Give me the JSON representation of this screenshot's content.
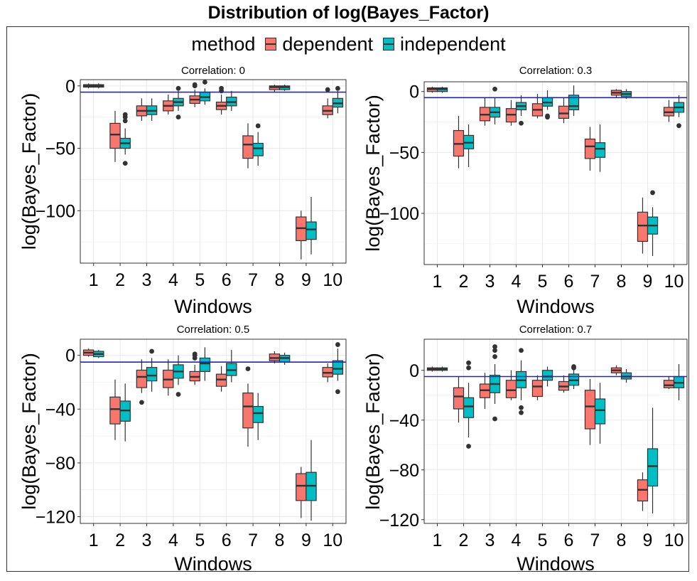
{
  "title": "Distribution of log(Bayes_Factor)",
  "legend": {
    "title": "method",
    "entries": [
      {
        "name": "dependent",
        "color": "#F8766D"
      },
      {
        "name": "independent",
        "color": "#00BFC4"
      }
    ]
  },
  "colors": {
    "reference_line": "#2222CC",
    "outline": "#333333",
    "grid": "#EBEBEB"
  },
  "chart_data": [
    {
      "type": "boxplot",
      "title": "Correlation: 0",
      "xlabel": "Windows",
      "ylabel": "log(Bayes_Factor)",
      "categories": [
        "1",
        "2",
        "3",
        "4",
        "5",
        "6",
        "7",
        "8",
        "9",
        "10"
      ],
      "ylim": [
        -142,
        5
      ],
      "yticks": [
        0,
        -50,
        -100
      ],
      "yticklabels": [
        "0",
        "−50",
        "−100"
      ],
      "hline": -5,
      "series": [
        {
          "name": "dependent",
          "boxes": [
            {
              "low": -2,
              "q1": -1,
              "median": 0,
              "q3": 1,
              "high": 2,
              "outliers": []
            },
            {
              "low": -61,
              "q1": -50,
              "median": -39,
              "q3": -30,
              "high": -20,
              "outliers": []
            },
            {
              "low": -28,
              "q1": -24,
              "median": -20,
              "q3": -16,
              "high": -10,
              "outliers": []
            },
            {
              "low": -23,
              "q1": -20,
              "median": -16,
              "q3": -12,
              "high": -7,
              "outliers": []
            },
            {
              "low": -17,
              "q1": -14,
              "median": -11,
              "q3": -8,
              "high": -3,
              "outliers": [
                0,
                1
              ]
            },
            {
              "low": -23,
              "q1": -19,
              "median": -16,
              "q3": -13,
              "high": -7,
              "outliers": [
                -2,
                -4
              ]
            },
            {
              "low": -66,
              "q1": -58,
              "median": -47,
              "q3": -40,
              "high": -30,
              "outliers": []
            },
            {
              "low": -5,
              "q1": -3,
              "median": -1,
              "q3": 0,
              "high": 1,
              "outliers": []
            },
            {
              "low": -139,
              "q1": -124,
              "median": -114,
              "q3": -105,
              "high": -100,
              "outliers": []
            },
            {
              "low": -26,
              "q1": -23,
              "median": -20,
              "q3": -16,
              "high": -10,
              "outliers": [
                -3
              ]
            }
          ]
        },
        {
          "name": "independent",
          "boxes": [
            {
              "low": -2,
              "q1": -1,
              "median": 0,
              "q3": 1,
              "high": 2,
              "outliers": []
            },
            {
              "low": -55,
              "q1": -50,
              "median": -46,
              "q3": -42,
              "high": -34,
              "outliers": [
                -62,
                -23,
                -25,
                -28
              ]
            },
            {
              "low": -28,
              "q1": -23,
              "median": -20,
              "q3": -16,
              "high": -10,
              "outliers": []
            },
            {
              "low": -20,
              "q1": -16,
              "median": -13,
              "q3": -10,
              "high": -4,
              "outliers": [
                -2,
                -25
              ]
            },
            {
              "low": -15,
              "q1": -12,
              "median": -9,
              "q3": -5,
              "high": -2,
              "outliers": [
                3
              ]
            },
            {
              "low": -20,
              "q1": -16,
              "median": -13,
              "q3": -9,
              "high": -4,
              "outliers": []
            },
            {
              "low": -64,
              "q1": -56,
              "median": -50,
              "q3": -46,
              "high": -37,
              "outliers": [
                -32
              ]
            },
            {
              "low": -4,
              "q1": -3,
              "median": -1,
              "q3": 0,
              "high": 1,
              "outliers": []
            },
            {
              "low": -135,
              "q1": -123,
              "median": -115,
              "q3": -109,
              "high": -89,
              "outliers": []
            },
            {
              "low": -22,
              "q1": -17,
              "median": -14,
              "q3": -10,
              "high": -4,
              "outliers": [
                -2
              ]
            }
          ]
        }
      ]
    },
    {
      "type": "boxplot",
      "title": "Correlation: 0.3",
      "xlabel": "Windows",
      "ylabel": "log(Bayes_Factor)",
      "categories": [
        "1",
        "2",
        "3",
        "4",
        "5",
        "6",
        "7",
        "8",
        "9",
        "10"
      ],
      "ylim": [
        -142,
        8
      ],
      "yticks": [
        0,
        -50,
        -100
      ],
      "yticklabels": [
        "0",
        "−50",
        "−100"
      ],
      "hline": -5,
      "series": [
        {
          "name": "dependent",
          "boxes": [
            {
              "low": -1,
              "q1": 0,
              "median": 2,
              "q3": 3,
              "high": 4,
              "outliers": []
            },
            {
              "low": -63,
              "q1": -53,
              "median": -43,
              "q3": -32,
              "high": -20,
              "outliers": []
            },
            {
              "low": -28,
              "q1": -24,
              "median": -19,
              "q3": -13,
              "high": -5,
              "outliers": []
            },
            {
              "low": -28,
              "q1": -25,
              "median": -19,
              "q3": -14,
              "high": -7,
              "outliers": []
            },
            {
              "low": -22,
              "q1": -20,
              "median": -15,
              "q3": -10,
              "high": -2,
              "outliers": []
            },
            {
              "low": -26,
              "q1": -22,
              "median": -18,
              "q3": -12,
              "high": -5,
              "outliers": []
            },
            {
              "low": -65,
              "q1": -55,
              "median": -45,
              "q3": -39,
              "high": -29,
              "outliers": []
            },
            {
              "low": -5,
              "q1": -3,
              "median": -1,
              "q3": 1,
              "high": 2,
              "outliers": []
            },
            {
              "low": -133,
              "q1": -123,
              "median": -110,
              "q3": -99,
              "high": -87,
              "outliers": []
            },
            {
              "low": -25,
              "q1": -20,
              "median": -17,
              "q3": -13,
              "high": -7,
              "outliers": []
            }
          ]
        },
        {
          "name": "independent",
          "boxes": [
            {
              "low": -1,
              "q1": 0,
              "median": 2,
              "q3": 3,
              "high": 4,
              "outliers": []
            },
            {
              "low": -62,
              "q1": -47,
              "median": -42,
              "q3": -36,
              "high": -27,
              "outliers": []
            },
            {
              "low": -27,
              "q1": -21,
              "median": -17,
              "q3": -13,
              "high": -5,
              "outliers": [
                2
              ]
            },
            {
              "low": -20,
              "q1": -15,
              "median": -12,
              "q3": -9,
              "high": -3,
              "outliers": [
                -26
              ]
            },
            {
              "low": -15,
              "q1": -12,
              "median": -9,
              "q3": -5,
              "high": 1,
              "outliers": [
                -21,
                -20
              ]
            },
            {
              "low": -20,
              "q1": -15,
              "median": -12,
              "q3": -3,
              "high": 5,
              "outliers": []
            },
            {
              "low": -66,
              "q1": -54,
              "median": -47,
              "q3": -42,
              "high": -27,
              "outliers": []
            },
            {
              "low": -6,
              "q1": -4,
              "median": -2,
              "q3": 0,
              "high": 2,
              "outliers": []
            },
            {
              "low": -135,
              "q1": -117,
              "median": -110,
              "q3": -103,
              "high": -95,
              "outliers": [
                -83
              ]
            },
            {
              "low": -21,
              "q1": -17,
              "median": -13,
              "q3": -9,
              "high": -3,
              "outliers": [
                -28
              ]
            }
          ]
        }
      ]
    },
    {
      "type": "boxplot",
      "title": "Correlation: 0.5",
      "xlabel": "Windows",
      "ylabel": "log(Bayes_Factor)",
      "categories": [
        "1",
        "2",
        "3",
        "4",
        "5",
        "6",
        "7",
        "8",
        "9",
        "10"
      ],
      "ylim": [
        -125,
        12
      ],
      "yticks": [
        0,
        -40,
        -80,
        -120
      ],
      "yticklabels": [
        "0",
        "−40",
        "−80",
        "−120"
      ],
      "hline": -5,
      "series": [
        {
          "name": "dependent",
          "boxes": [
            {
              "low": -1,
              "q1": 0,
              "median": 2,
              "q3": 4,
              "high": 5,
              "outliers": []
            },
            {
              "low": -63,
              "q1": -51,
              "median": -40,
              "q3": -31,
              "high": -18,
              "outliers": []
            },
            {
              "low": -28,
              "q1": -24,
              "median": -16,
              "q3": -11,
              "high": -3,
              "outliers": [
                -35
              ]
            },
            {
              "low": -30,
              "q1": -24,
              "median": -18,
              "q3": -11,
              "high": -3,
              "outliers": []
            },
            {
              "low": -22,
              "q1": -19,
              "median": -16,
              "q3": -12,
              "high": -7,
              "outliers": [
                -2,
                0,
                1
              ]
            },
            {
              "low": -27,
              "q1": -23,
              "median": -18,
              "q3": -14,
              "high": -8,
              "outliers": []
            },
            {
              "low": -68,
              "q1": -54,
              "median": -38,
              "q3": -28,
              "high": -21,
              "outliers": [
                -10
              ]
            },
            {
              "low": -6,
              "q1": -4,
              "median": -2,
              "q3": 1,
              "high": 3,
              "outliers": []
            },
            {
              "low": -121,
              "q1": -108,
              "median": -97,
              "q3": -88,
              "high": -83,
              "outliers": []
            },
            {
              "low": -20,
              "q1": -16,
              "median": -13,
              "q3": -9,
              "high": -6,
              "outliers": []
            }
          ]
        },
        {
          "name": "independent",
          "boxes": [
            {
              "low": -2,
              "q1": -1,
              "median": 1,
              "q3": 3,
              "high": 4,
              "outliers": []
            },
            {
              "low": -64,
              "q1": -49,
              "median": -41,
              "q3": -34,
              "high": -21,
              "outliers": []
            },
            {
              "low": -27,
              "q1": -19,
              "median": -15,
              "q3": -9,
              "high": -2,
              "outliers": [
                3
              ]
            },
            {
              "low": -22,
              "q1": -17,
              "median": -12,
              "q3": -7,
              "high": 0,
              "outliers": [
                -29
              ]
            },
            {
              "low": -19,
              "q1": -12,
              "median": -6,
              "q3": -2,
              "high": 6,
              "outliers": []
            },
            {
              "low": -20,
              "q1": -15,
              "median": -11,
              "q3": -6,
              "high": 4,
              "outliers": []
            },
            {
              "low": -63,
              "q1": -50,
              "median": -43,
              "q3": -38,
              "high": -28,
              "outliers": []
            },
            {
              "low": -7,
              "q1": -5,
              "median": -2,
              "q3": 0,
              "high": 2,
              "outliers": []
            },
            {
              "low": -123,
              "q1": -108,
              "median": -97,
              "q3": -87,
              "high": -63,
              "outliers": []
            },
            {
              "low": -19,
              "q1": -14,
              "median": -10,
              "q3": -4,
              "high": 5,
              "outliers": [
                -27,
                8
              ]
            }
          ]
        }
      ]
    },
    {
      "type": "boxplot",
      "title": "Correlation: 0.7",
      "xlabel": "Windows",
      "ylabel": "log(Bayes_Factor)",
      "categories": [
        "1",
        "2",
        "3",
        "4",
        "5",
        "6",
        "7",
        "8",
        "9",
        "10"
      ],
      "ylim": [
        -123,
        25
      ],
      "yticks": [
        0,
        -40,
        -80,
        -120
      ],
      "yticklabels": [
        "0",
        "−40",
        "−80",
        "−120"
      ],
      "hline": -5,
      "series": [
        {
          "name": "dependent",
          "boxes": [
            {
              "low": -1,
              "q1": 0,
              "median": 1,
              "q3": 2,
              "high": 3,
              "outliers": []
            },
            {
              "low": -42,
              "q1": -31,
              "median": -21,
              "q3": -14,
              "high": -5,
              "outliers": []
            },
            {
              "low": -31,
              "q1": -22,
              "median": -16,
              "q3": -11,
              "high": -2,
              "outliers": []
            },
            {
              "low": -24,
              "q1": -22,
              "median": -16,
              "q3": -8,
              "high": 0,
              "outliers": []
            },
            {
              "low": -24,
              "q1": -21,
              "median": -13,
              "q3": -8,
              "high": -4,
              "outliers": []
            },
            {
              "low": -18,
              "q1": -16,
              "median": -13,
              "q3": -9,
              "high": -4,
              "outliers": []
            },
            {
              "low": -60,
              "q1": -47,
              "median": -29,
              "q3": -16,
              "high": -7,
              "outliers": []
            },
            {
              "low": -4,
              "q1": -2,
              "median": 0,
              "q3": 2,
              "high": 4,
              "outliers": []
            },
            {
              "low": -113,
              "q1": -105,
              "median": -96,
              "q3": -88,
              "high": -82,
              "outliers": []
            },
            {
              "low": -15,
              "q1": -14,
              "median": -12,
              "q3": -8,
              "high": -5,
              "outliers": []
            }
          ]
        },
        {
          "name": "independent",
          "boxes": [
            {
              "low": -1,
              "q1": 0,
              "median": 1,
              "q3": 2,
              "high": 3,
              "outliers": []
            },
            {
              "low": -54,
              "q1": -38,
              "median": -29,
              "q3": -22,
              "high": -10,
              "outliers": [
                -61,
                6,
                2
              ]
            },
            {
              "low": -27,
              "q1": -18,
              "median": -11,
              "q3": -4,
              "high": 5,
              "outliers": [
                -39,
                19,
                16,
                11
              ]
            },
            {
              "low": -24,
              "q1": -14,
              "median": -8,
              "q3": -1,
              "high": 8,
              "outliers": [
                -30,
                -34,
                16
              ]
            },
            {
              "low": -13,
              "q1": -8,
              "median": -5,
              "q3": 0,
              "high": 3,
              "outliers": []
            },
            {
              "low": -15,
              "q1": -12,
              "median": -8,
              "q3": -3,
              "high": 1,
              "outliers": [
                3,
                2
              ]
            },
            {
              "low": -59,
              "q1": -43,
              "median": -32,
              "q3": -23,
              "high": -10,
              "outliers": []
            },
            {
              "low": -10,
              "q1": -7,
              "median": -5,
              "q3": -2,
              "high": 1,
              "outliers": []
            },
            {
              "low": -115,
              "q1": -93,
              "median": -77,
              "q3": -63,
              "high": -30,
              "outliers": []
            },
            {
              "low": -24,
              "q1": -14,
              "median": -10,
              "q3": -5,
              "high": 5,
              "outliers": []
            }
          ]
        }
      ]
    }
  ]
}
